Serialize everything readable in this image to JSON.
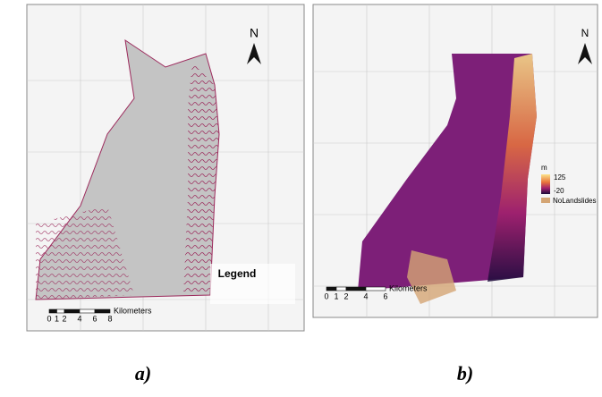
{
  "panels": [
    {
      "label": "a)",
      "north": "N",
      "legend_title": "Legend",
      "scale": {
        "ticks": [
          0,
          1,
          2,
          4,
          6,
          8
        ],
        "unit": "Kilometers"
      }
    },
    {
      "label": "b)",
      "north": "N",
      "legend": {
        "unit": "m",
        "max": 125,
        "min": -20,
        "item": "NoLandslides"
      },
      "scale": {
        "ticks": [
          0,
          1,
          2,
          4,
          6
        ],
        "unit": "Kilometers"
      }
    }
  ]
}
